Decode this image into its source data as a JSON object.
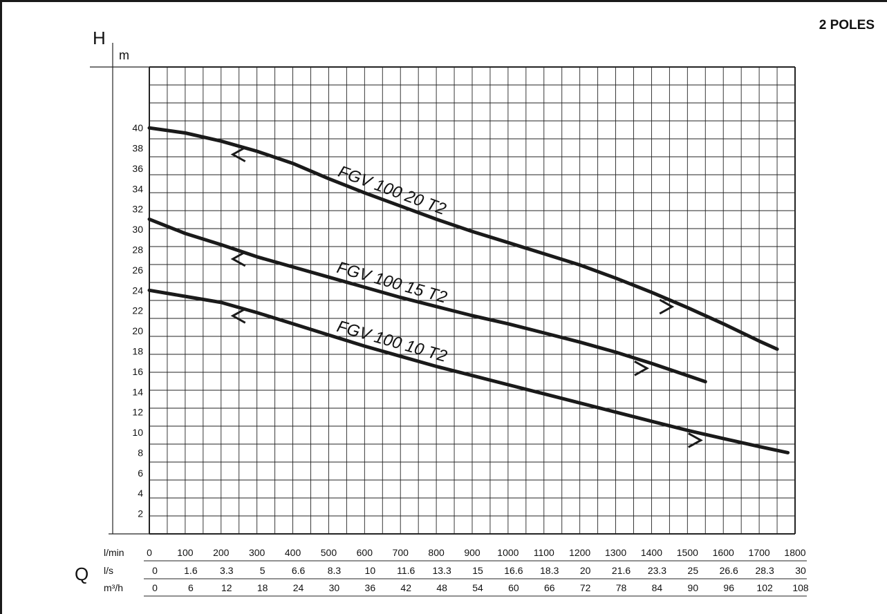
{
  "header": {
    "poles_label": "2 POLES"
  },
  "chart_data": {
    "type": "line",
    "y_axis": {
      "symbol": "H",
      "unit": "m",
      "ticks": [
        2,
        4,
        6,
        8,
        10,
        12,
        14,
        16,
        18,
        20,
        22,
        24,
        26,
        28,
        30,
        32,
        34,
        36,
        38,
        40
      ],
      "range": [
        0,
        46
      ]
    },
    "x_axis": {
      "symbol": "Q",
      "range": [
        0,
        1800
      ],
      "rows": [
        {
          "unit": "l/min",
          "ticks": [
            "0",
            "100",
            "200",
            "300",
            "400",
            "500",
            "600",
            "700",
            "800",
            "900",
            "1000",
            "1100",
            "1200",
            "1300",
            "1400",
            "1500",
            "1600",
            "1700",
            "1800"
          ]
        },
        {
          "unit": "l/s",
          "ticks": [
            "0",
            "1.6",
            "3.3",
            "5",
            "6.6",
            "8.3",
            "10",
            "11.6",
            "13.3",
            "15",
            "16.6",
            "18.3",
            "20",
            "21.6",
            "23.3",
            "25",
            "26.6",
            "28.3",
            "30"
          ]
        },
        {
          "unit": "m³/h",
          "ticks": [
            "0",
            "6",
            "12",
            "18",
            "24",
            "30",
            "36",
            "42",
            "48",
            "54",
            "60",
            "66",
            "72",
            "78",
            "84",
            "90",
            "96",
            "102",
            "108"
          ]
        }
      ]
    },
    "grid": true,
    "series": [
      {
        "name": "FGV 100 20 T2",
        "x": [
          0,
          100,
          200,
          300,
          400,
          500,
          600,
          700,
          800,
          900,
          1000,
          1100,
          1200,
          1300,
          1400,
          1500,
          1600,
          1700,
          1750
        ],
        "y": [
          40,
          39.5,
          38.7,
          37.7,
          36.5,
          35.0,
          33.6,
          32.3,
          31.0,
          29.8,
          28.7,
          27.6,
          26.5,
          25.2,
          23.8,
          22.3,
          20.7,
          19.0,
          18.2
        ],
        "range_markers": [
          250,
          1440
        ]
      },
      {
        "name": "FGV 100 15 T2",
        "x": [
          0,
          100,
          200,
          300,
          400,
          500,
          600,
          700,
          800,
          900,
          1000,
          1100,
          1200,
          1300,
          1400,
          1500,
          1550
        ],
        "y": [
          31,
          29.6,
          28.5,
          27.3,
          26.3,
          25.3,
          24.3,
          23.3,
          22.4,
          21.5,
          20.7,
          19.8,
          18.9,
          17.9,
          16.8,
          15.6,
          15.0
        ],
        "range_markers": [
          250,
          1370
        ]
      },
      {
        "name": "FGV 100 10 T2",
        "x": [
          0,
          100,
          200,
          300,
          400,
          500,
          600,
          700,
          800,
          900,
          1000,
          1100,
          1200,
          1300,
          1400,
          1500,
          1600,
          1700,
          1780
        ],
        "y": [
          24,
          23.4,
          22.8,
          21.8,
          20.7,
          19.6,
          18.5,
          17.5,
          16.5,
          15.6,
          14.7,
          13.8,
          12.9,
          12.0,
          11.1,
          10.2,
          9.4,
          8.6,
          8.0
        ],
        "range_markers": [
          250,
          1520
        ]
      }
    ]
  }
}
